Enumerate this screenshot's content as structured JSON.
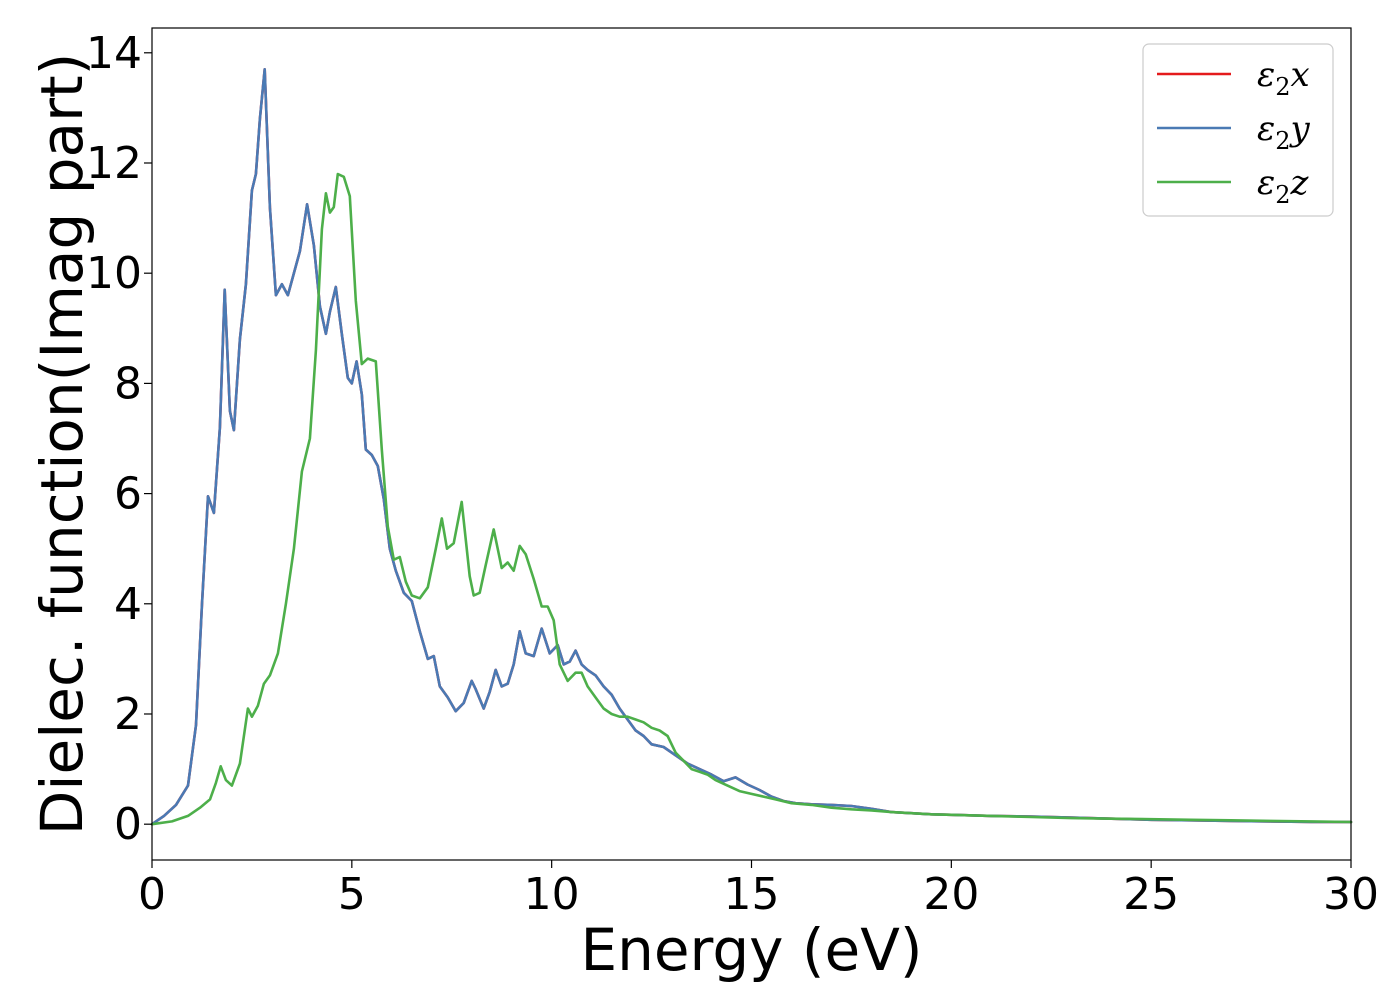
{
  "chart_data": {
    "type": "line",
    "title": "",
    "xlabel": "Energy (eV)",
    "ylabel": "Dielec. function(Imag part)",
    "xlim": [
      0,
      30
    ],
    "ylim": [
      -0.65,
      14.45
    ],
    "xticks": [
      0,
      5,
      10,
      15,
      20,
      25,
      30
    ],
    "yticks": [
      0,
      2,
      4,
      6,
      8,
      10,
      12,
      14
    ],
    "grid": false,
    "legend_position": "top-right",
    "series": [
      {
        "name": "ε2x",
        "legend_main": "ε",
        "legend_sub": "2",
        "legend_tail": "x",
        "color": "#e41a1c",
        "x": [
          0,
          0.3,
          0.6,
          0.9,
          1.1,
          1.25,
          1.4,
          1.55,
          1.7,
          1.82,
          1.95,
          2.05,
          2.2,
          2.35,
          2.5,
          2.6,
          2.7,
          2.82,
          2.95,
          3.1,
          3.25,
          3.4,
          3.55,
          3.7,
          3.88,
          4.05,
          4.2,
          4.35,
          4.45,
          4.6,
          4.75,
          4.9,
          5.0,
          5.12,
          5.25,
          5.35,
          5.5,
          5.65,
          5.8,
          5.95,
          6.1,
          6.3,
          6.5,
          6.7,
          6.9,
          7.05,
          7.2,
          7.4,
          7.6,
          7.8,
          8.0,
          8.1,
          8.3,
          8.45,
          8.6,
          8.75,
          8.9,
          9.05,
          9.2,
          9.35,
          9.55,
          9.75,
          9.95,
          10.15,
          10.3,
          10.45,
          10.6,
          10.75,
          10.9,
          11.1,
          11.3,
          11.5,
          11.7,
          11.9,
          12.1,
          12.3,
          12.5,
          12.8,
          13.1,
          13.4,
          13.7,
          14.0,
          14.3,
          14.6,
          14.9,
          15.2,
          15.5,
          15.8,
          16.1,
          16.5,
          17.0,
          17.5,
          18.0,
          18.5,
          19.0,
          19.5,
          20.0,
          21.0,
          22.0,
          23.0,
          24.0,
          25.0,
          26.0,
          27.0,
          28.0,
          29.0,
          30.0
        ],
        "y": [
          0,
          0.15,
          0.35,
          0.7,
          1.8,
          4.0,
          5.95,
          5.65,
          7.2,
          9.7,
          7.5,
          7.15,
          8.8,
          9.8,
          11.5,
          11.8,
          12.8,
          13.7,
          11.2,
          9.6,
          9.8,
          9.6,
          10.0,
          10.4,
          11.25,
          10.5,
          9.4,
          8.9,
          9.3,
          9.75,
          8.9,
          8.1,
          8.0,
          8.4,
          7.8,
          6.8,
          6.7,
          6.5,
          5.9,
          5.0,
          4.6,
          4.2,
          4.05,
          3.5,
          3.0,
          3.05,
          2.5,
          2.3,
          2.05,
          2.2,
          2.6,
          2.45,
          2.1,
          2.4,
          2.8,
          2.5,
          2.55,
          2.9,
          3.5,
          3.1,
          3.05,
          3.55,
          3.1,
          3.25,
          2.9,
          2.95,
          3.15,
          2.9,
          2.8,
          2.7,
          2.5,
          2.35,
          2.1,
          1.9,
          1.7,
          1.6,
          1.45,
          1.4,
          1.25,
          1.1,
          1.0,
          0.9,
          0.78,
          0.85,
          0.72,
          0.62,
          0.5,
          0.42,
          0.38,
          0.36,
          0.35,
          0.33,
          0.28,
          0.22,
          0.2,
          0.18,
          0.17,
          0.15,
          0.14,
          0.12,
          0.1,
          0.08,
          0.07,
          0.06,
          0.05,
          0.04,
          0.04
        ]
      },
      {
        "name": "ε2y",
        "legend_main": "ε",
        "legend_sub": "2",
        "legend_tail": "y",
        "color": "#4a7ab4",
        "x": [
          0,
          0.3,
          0.6,
          0.9,
          1.1,
          1.25,
          1.4,
          1.55,
          1.7,
          1.82,
          1.95,
          2.05,
          2.2,
          2.35,
          2.5,
          2.6,
          2.7,
          2.82,
          2.95,
          3.1,
          3.25,
          3.4,
          3.55,
          3.7,
          3.88,
          4.05,
          4.2,
          4.35,
          4.45,
          4.6,
          4.75,
          4.9,
          5.0,
          5.12,
          5.25,
          5.35,
          5.5,
          5.65,
          5.8,
          5.95,
          6.1,
          6.3,
          6.5,
          6.7,
          6.9,
          7.05,
          7.2,
          7.4,
          7.6,
          7.8,
          8.0,
          8.1,
          8.3,
          8.45,
          8.6,
          8.75,
          8.9,
          9.05,
          9.2,
          9.35,
          9.55,
          9.75,
          9.95,
          10.15,
          10.3,
          10.45,
          10.6,
          10.75,
          10.9,
          11.1,
          11.3,
          11.5,
          11.7,
          11.9,
          12.1,
          12.3,
          12.5,
          12.8,
          13.1,
          13.4,
          13.7,
          14.0,
          14.3,
          14.6,
          14.9,
          15.2,
          15.5,
          15.8,
          16.1,
          16.5,
          17.0,
          17.5,
          18.0,
          18.5,
          19.0,
          19.5,
          20.0,
          21.0,
          22.0,
          23.0,
          24.0,
          25.0,
          26.0,
          27.0,
          28.0,
          29.0,
          30.0
        ],
        "y": [
          0,
          0.15,
          0.35,
          0.7,
          1.8,
          4.0,
          5.95,
          5.65,
          7.2,
          9.7,
          7.5,
          7.15,
          8.8,
          9.8,
          11.5,
          11.8,
          12.8,
          13.7,
          11.2,
          9.6,
          9.8,
          9.6,
          10.0,
          10.4,
          11.25,
          10.5,
          9.4,
          8.9,
          9.3,
          9.75,
          8.9,
          8.1,
          8.0,
          8.4,
          7.8,
          6.8,
          6.7,
          6.5,
          5.9,
          5.0,
          4.6,
          4.2,
          4.05,
          3.5,
          3.0,
          3.05,
          2.5,
          2.3,
          2.05,
          2.2,
          2.6,
          2.45,
          2.1,
          2.4,
          2.8,
          2.5,
          2.55,
          2.9,
          3.5,
          3.1,
          3.05,
          3.55,
          3.1,
          3.25,
          2.9,
          2.95,
          3.15,
          2.9,
          2.8,
          2.7,
          2.5,
          2.35,
          2.1,
          1.9,
          1.7,
          1.6,
          1.45,
          1.4,
          1.25,
          1.1,
          1.0,
          0.9,
          0.78,
          0.85,
          0.72,
          0.62,
          0.5,
          0.42,
          0.38,
          0.36,
          0.35,
          0.33,
          0.28,
          0.22,
          0.2,
          0.18,
          0.17,
          0.15,
          0.14,
          0.12,
          0.1,
          0.08,
          0.07,
          0.06,
          0.05,
          0.04,
          0.04
        ]
      },
      {
        "name": "ε2z",
        "legend_main": "ε",
        "legend_sub": "2",
        "legend_tail": "z",
        "color": "#4daf4a",
        "x": [
          0,
          0.5,
          0.9,
          1.2,
          1.45,
          1.6,
          1.72,
          1.85,
          2.0,
          2.2,
          2.4,
          2.5,
          2.65,
          2.8,
          2.95,
          3.15,
          3.35,
          3.55,
          3.75,
          3.95,
          4.1,
          4.25,
          4.35,
          4.45,
          4.55,
          4.65,
          4.8,
          4.95,
          5.1,
          5.25,
          5.4,
          5.6,
          5.75,
          5.9,
          6.05,
          6.2,
          6.35,
          6.5,
          6.7,
          6.9,
          7.1,
          7.25,
          7.38,
          7.55,
          7.75,
          7.95,
          8.05,
          8.2,
          8.35,
          8.55,
          8.75,
          8.9,
          9.05,
          9.2,
          9.35,
          9.55,
          9.75,
          9.9,
          10.05,
          10.2,
          10.4,
          10.6,
          10.75,
          10.9,
          11.1,
          11.3,
          11.5,
          11.7,
          11.9,
          12.1,
          12.3,
          12.5,
          12.7,
          12.9,
          13.1,
          13.3,
          13.5,
          13.7,
          13.9,
          14.1,
          14.4,
          14.7,
          15.0,
          15.3,
          15.6,
          16.0,
          16.5,
          17.0,
          17.5,
          18.0,
          18.5,
          19.0,
          19.5,
          20.0,
          21.0,
          22.0,
          23.0,
          24.0,
          25.0,
          26.0,
          27.0,
          28.0,
          29.0,
          30.0
        ],
        "y": [
          0,
          0.05,
          0.15,
          0.3,
          0.45,
          0.75,
          1.05,
          0.8,
          0.7,
          1.1,
          2.1,
          1.95,
          2.15,
          2.55,
          2.7,
          3.1,
          4.0,
          5.0,
          6.4,
          7.0,
          8.6,
          10.8,
          11.45,
          11.1,
          11.2,
          11.8,
          11.75,
          11.4,
          9.5,
          8.35,
          8.45,
          8.4,
          6.8,
          5.4,
          4.8,
          4.85,
          4.4,
          4.15,
          4.1,
          4.3,
          5.0,
          5.55,
          5.0,
          5.1,
          5.85,
          4.5,
          4.15,
          4.2,
          4.7,
          5.35,
          4.65,
          4.75,
          4.6,
          5.05,
          4.9,
          4.45,
          3.95,
          3.95,
          3.7,
          2.9,
          2.6,
          2.75,
          2.75,
          2.5,
          2.3,
          2.1,
          2.0,
          1.95,
          1.95,
          1.9,
          1.85,
          1.75,
          1.7,
          1.6,
          1.3,
          1.15,
          1.0,
          0.95,
          0.9,
          0.8,
          0.7,
          0.6,
          0.55,
          0.5,
          0.45,
          0.38,
          0.35,
          0.3,
          0.27,
          0.25,
          0.22,
          0.2,
          0.18,
          0.17,
          0.15,
          0.13,
          0.11,
          0.1,
          0.09,
          0.08,
          0.07,
          0.06,
          0.05,
          0.04
        ]
      }
    ]
  }
}
